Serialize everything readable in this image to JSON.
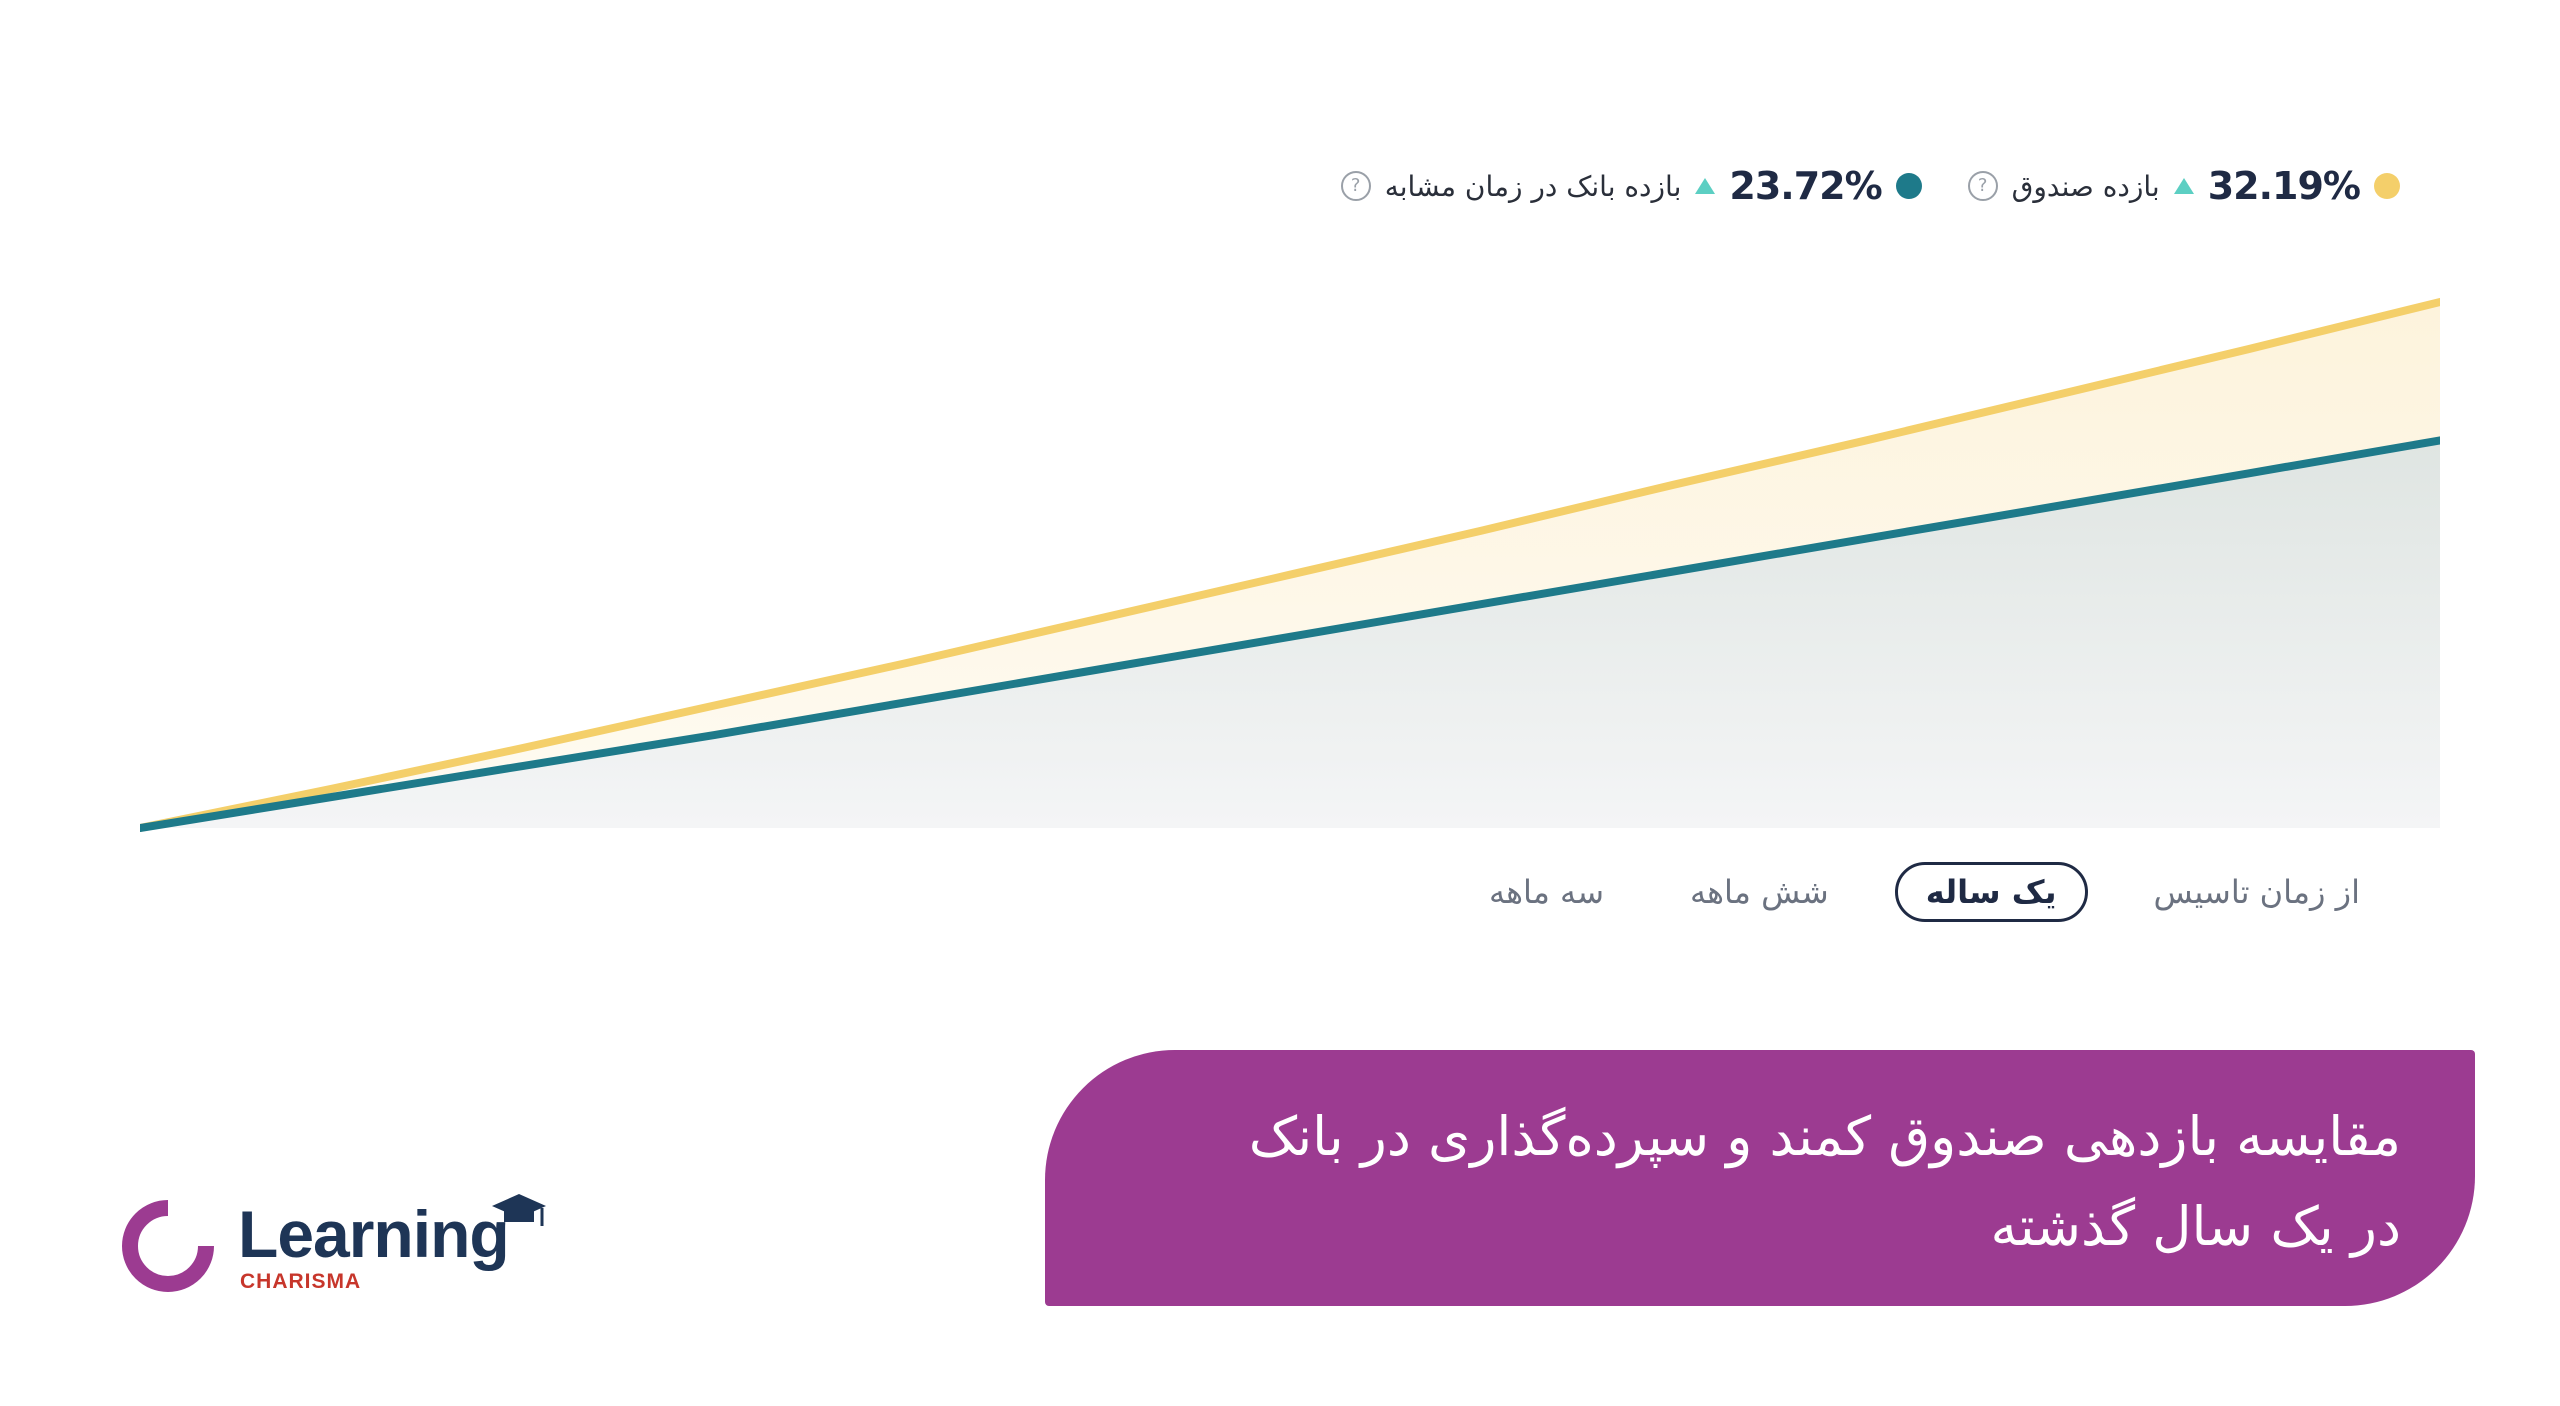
{
  "legend": {
    "fund": {
      "value": "32.19%",
      "label": "بازده صندوق",
      "color": "#f4cf6a"
    },
    "bank": {
      "value": "23.72%",
      "label": "بازده بانک در زمان مشابه",
      "color": "#1e7a8a"
    },
    "help_glyph": "?"
  },
  "tabs": [
    {
      "label": "از زمان تاسیس",
      "active": false
    },
    {
      "label": "یک ساله",
      "active": true
    },
    {
      "label": "شش ماهه",
      "active": false
    },
    {
      "label": "سه ماهه",
      "active": false
    }
  ],
  "banner": {
    "line1": "مقایسه بازدهی صندوق کمند و سپرده‌گذاری در بانک",
    "line2": "در یک سال گذشته"
  },
  "logo": {
    "word": "Learning",
    "sub": "CHARISMA"
  },
  "colors": {
    "fund": "#f4cf6a",
    "bank": "#1e7a8a",
    "accent": "#9c3b91",
    "logo_dark": "#1e3556",
    "logo_red": "#c7362b"
  },
  "chart_data": {
    "type": "area",
    "x": [
      0,
      1,
      2,
      3,
      4,
      5,
      6,
      7,
      8,
      9,
      10,
      11,
      12
    ],
    "ylim": [
      0,
      32.19
    ],
    "series": [
      {
        "name": "بازده صندوق",
        "values": [
          0,
          2.4,
          4.9,
          7.5,
          10.1,
          12.8,
          15.5,
          18.2,
          21.0,
          23.7,
          26.5,
          29.3,
          32.19
        ]
      },
      {
        "name": "بازده بانک در زمان مشابه",
        "values": [
          0,
          1.9,
          3.8,
          5.7,
          7.7,
          9.7,
          11.7,
          13.7,
          15.7,
          17.7,
          19.7,
          21.7,
          23.72
        ]
      }
    ],
    "grid": false,
    "legend_position": "top-right"
  }
}
